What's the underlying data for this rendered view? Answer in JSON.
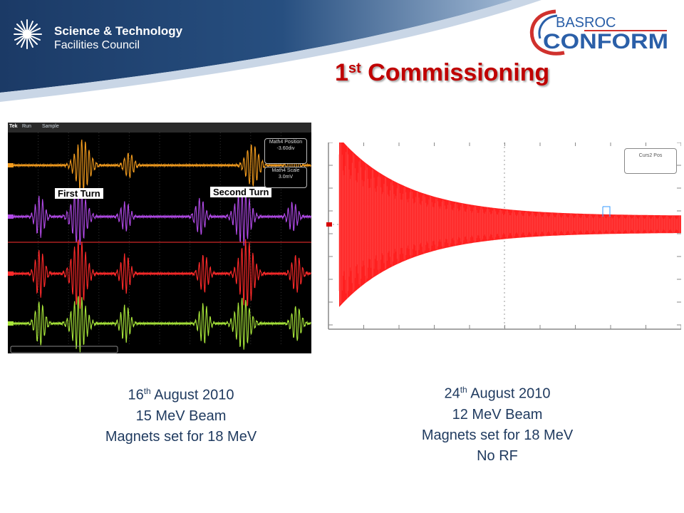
{
  "header": {
    "org_line1": "Science & Technology",
    "org_line2": "Facilities Council",
    "partner_top": "BASROC",
    "partner_bottom": "CONFORM"
  },
  "title": {
    "number": "1",
    "suffix": "st",
    "text": "Commissioning"
  },
  "scope": {
    "brand": "Tek",
    "state": "Run",
    "mode": "Sample",
    "label_first": "First Turn",
    "label_second": "Second Turn",
    "math_position_label": "Math4 Position",
    "math_position_value": "-3.60div",
    "math_scale_label": "Math4 Scale",
    "math_scale_value": "3.0mV",
    "channel_colors": [
      "#f39c1e",
      "#b24ae8",
      "#ff2a2a",
      "#a8e63a"
    ]
  },
  "decay_plot": {
    "cursor_label": "Curs2 Pos",
    "trace_color": "#ff2020"
  },
  "captions": {
    "left": {
      "day": "16",
      "sup": "th",
      "month_year": "August 2010",
      "line2": "15 MeV Beam",
      "line3": "Magnets set for 18 MeV"
    },
    "right": {
      "day": "24",
      "sup": "th",
      "month_year": "August 2010",
      "line2": "12 MeV Beam",
      "line3": "Magnets set for 18 MeV",
      "line4": "No RF"
    }
  }
}
